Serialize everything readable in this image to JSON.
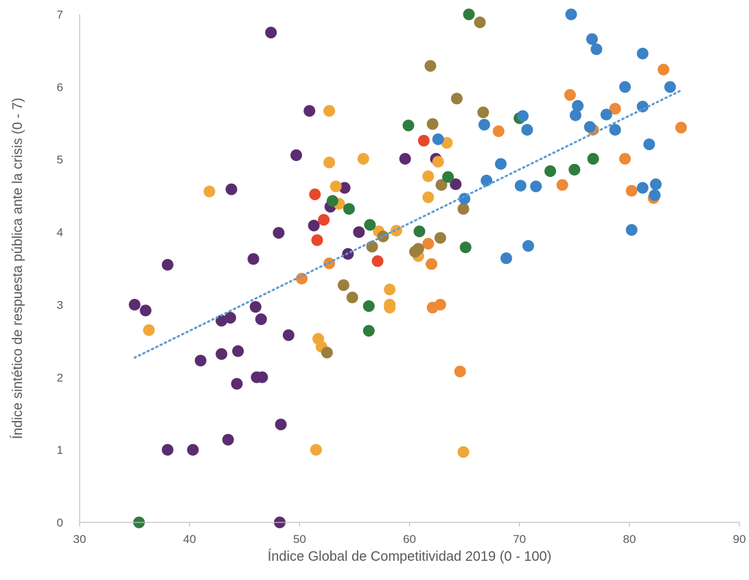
{
  "chart_data": {
    "type": "scatter",
    "title": "",
    "xlabel": "Índice Global de Competitividad 2019 (0 - 100)",
    "ylabel": "Índice sintético de respuesta pública ante la crisis (0 - 7)",
    "xlim": [
      30,
      90
    ],
    "ylim": [
      0,
      7
    ],
    "x_ticks": [
      30,
      40,
      50,
      60,
      70,
      80,
      90
    ],
    "y_ticks": [
      0,
      1,
      2,
      3,
      4,
      5,
      6,
      7
    ],
    "x_tick_labels": [
      "30",
      "40",
      "50",
      "60",
      "70",
      "80",
      "90"
    ],
    "y_tick_labels": [
      "0",
      "1",
      "2",
      "3",
      "4",
      "5",
      "6",
      "7"
    ],
    "grid": false,
    "legend": "none",
    "trendline": {
      "type": "linear",
      "color": "#5b9bd5",
      "style": "dotted",
      "x_start": 35,
      "x_end": 84.8,
      "y_start": 2.27,
      "y_end": 5.96
    },
    "series": [
      {
        "color": "#5b2c6f",
        "points": [
          [
            35.0,
            3.0
          ],
          [
            36.0,
            2.92
          ],
          [
            38.0,
            3.55
          ],
          [
            38.0,
            1.0
          ],
          [
            40.3,
            1.0
          ],
          [
            41.0,
            2.23
          ],
          [
            42.9,
            2.32
          ],
          [
            42.9,
            2.78
          ],
          [
            43.5,
            1.14
          ],
          [
            43.7,
            2.82
          ],
          [
            43.8,
            4.59
          ],
          [
            44.3,
            1.91
          ],
          [
            44.4,
            2.36
          ],
          [
            45.8,
            3.63
          ],
          [
            46.0,
            2.97
          ],
          [
            46.1,
            2.0
          ],
          [
            46.5,
            2.8
          ],
          [
            46.6,
            2.0
          ],
          [
            47.4,
            6.75
          ],
          [
            48.1,
            3.99
          ],
          [
            48.2,
            0.0
          ],
          [
            48.3,
            1.35
          ],
          [
            49.0,
            2.58
          ],
          [
            49.7,
            5.06
          ],
          [
            50.9,
            5.67
          ],
          [
            51.3,
            4.09
          ],
          [
            52.8,
            4.35
          ],
          [
            54.1,
            4.61
          ],
          [
            54.4,
            3.7
          ],
          [
            55.4,
            4.0
          ],
          [
            59.6,
            5.01
          ],
          [
            62.4,
            5.01
          ],
          [
            64.2,
            4.66
          ]
        ]
      },
      {
        "color": "#f0a73a",
        "points": [
          [
            36.3,
            2.65
          ],
          [
            41.8,
            4.56
          ],
          [
            51.5,
            1.0
          ],
          [
            51.7,
            2.53
          ],
          [
            52.0,
            2.42
          ],
          [
            52.7,
            5.67
          ],
          [
            52.7,
            4.96
          ],
          [
            53.3,
            4.63
          ],
          [
            53.6,
            4.39
          ],
          [
            55.8,
            5.01
          ],
          [
            57.2,
            4.01
          ],
          [
            58.2,
            3.21
          ],
          [
            58.2,
            3.0
          ],
          [
            58.2,
            2.96
          ],
          [
            58.8,
            4.02
          ],
          [
            60.8,
            3.67
          ],
          [
            61.7,
            4.48
          ],
          [
            61.7,
            4.77
          ],
          [
            62.6,
            4.97
          ],
          [
            63.4,
            5.23
          ],
          [
            64.9,
            0.97
          ]
        ]
      },
      {
        "color": "#ed8a35",
        "points": [
          [
            50.2,
            3.36
          ],
          [
            52.7,
            3.57
          ],
          [
            61.7,
            3.84
          ],
          [
            62.0,
            3.56
          ],
          [
            62.1,
            2.96
          ],
          [
            62.8,
            3.0
          ],
          [
            64.6,
            2.08
          ],
          [
            68.1,
            5.39
          ],
          [
            73.9,
            4.65
          ],
          [
            74.6,
            5.89
          ],
          [
            76.7,
            5.41
          ],
          [
            78.7,
            5.7
          ],
          [
            79.6,
            5.01
          ],
          [
            80.2,
            4.57
          ],
          [
            82.2,
            4.47
          ],
          [
            83.1,
            6.24
          ],
          [
            84.7,
            5.44
          ]
        ]
      },
      {
        "color": "#e8472b",
        "points": [
          [
            51.4,
            4.52
          ],
          [
            51.6,
            3.89
          ],
          [
            52.2,
            4.17
          ],
          [
            57.1,
            3.6
          ],
          [
            61.3,
            5.26
          ]
        ]
      },
      {
        "color": "#9b7f3e",
        "points": [
          [
            52.5,
            2.34
          ],
          [
            54.0,
            3.27
          ],
          [
            54.8,
            3.1
          ],
          [
            56.6,
            3.8
          ],
          [
            57.6,
            3.94
          ],
          [
            60.5,
            3.73
          ],
          [
            60.8,
            3.77
          ],
          [
            61.9,
            6.29
          ],
          [
            62.1,
            5.49
          ],
          [
            62.8,
            3.92
          ],
          [
            62.9,
            4.65
          ],
          [
            64.3,
            5.84
          ],
          [
            64.9,
            4.32
          ],
          [
            66.4,
            6.89
          ],
          [
            66.7,
            5.65
          ]
        ]
      },
      {
        "color": "#2e7d3e",
        "points": [
          [
            35.4,
            0.0
          ],
          [
            53.0,
            4.43
          ],
          [
            54.5,
            4.32
          ],
          [
            56.3,
            2.98
          ],
          [
            56.3,
            2.64
          ],
          [
            56.4,
            4.1
          ],
          [
            59.9,
            5.47
          ],
          [
            60.9,
            4.01
          ],
          [
            63.5,
            4.76
          ],
          [
            65.1,
            3.79
          ],
          [
            65.4,
            7.0
          ],
          [
            70.0,
            5.57
          ],
          [
            72.8,
            4.84
          ],
          [
            75.0,
            4.86
          ],
          [
            76.7,
            5.01
          ]
        ]
      },
      {
        "color": "#3b82c6",
        "points": [
          [
            62.6,
            5.28
          ],
          [
            65.0,
            4.46
          ],
          [
            66.8,
            5.48
          ],
          [
            67.0,
            4.71
          ],
          [
            68.3,
            4.94
          ],
          [
            68.8,
            3.64
          ],
          [
            70.1,
            4.64
          ],
          [
            70.3,
            5.6
          ],
          [
            70.7,
            5.41
          ],
          [
            70.8,
            3.81
          ],
          [
            71.5,
            4.63
          ],
          [
            74.7,
            7.0
          ],
          [
            75.1,
            5.61
          ],
          [
            75.3,
            5.74
          ],
          [
            76.4,
            5.45
          ],
          [
            76.6,
            6.66
          ],
          [
            77.0,
            6.52
          ],
          [
            77.9,
            5.62
          ],
          [
            78.7,
            5.41
          ],
          [
            79.6,
            6.0
          ],
          [
            80.2,
            4.03
          ],
          [
            81.2,
            6.46
          ],
          [
            81.2,
            5.73
          ],
          [
            81.2,
            4.61
          ],
          [
            81.8,
            5.21
          ],
          [
            82.3,
            4.51
          ],
          [
            82.4,
            4.66
          ],
          [
            83.7,
            6.0
          ]
        ]
      }
    ]
  }
}
